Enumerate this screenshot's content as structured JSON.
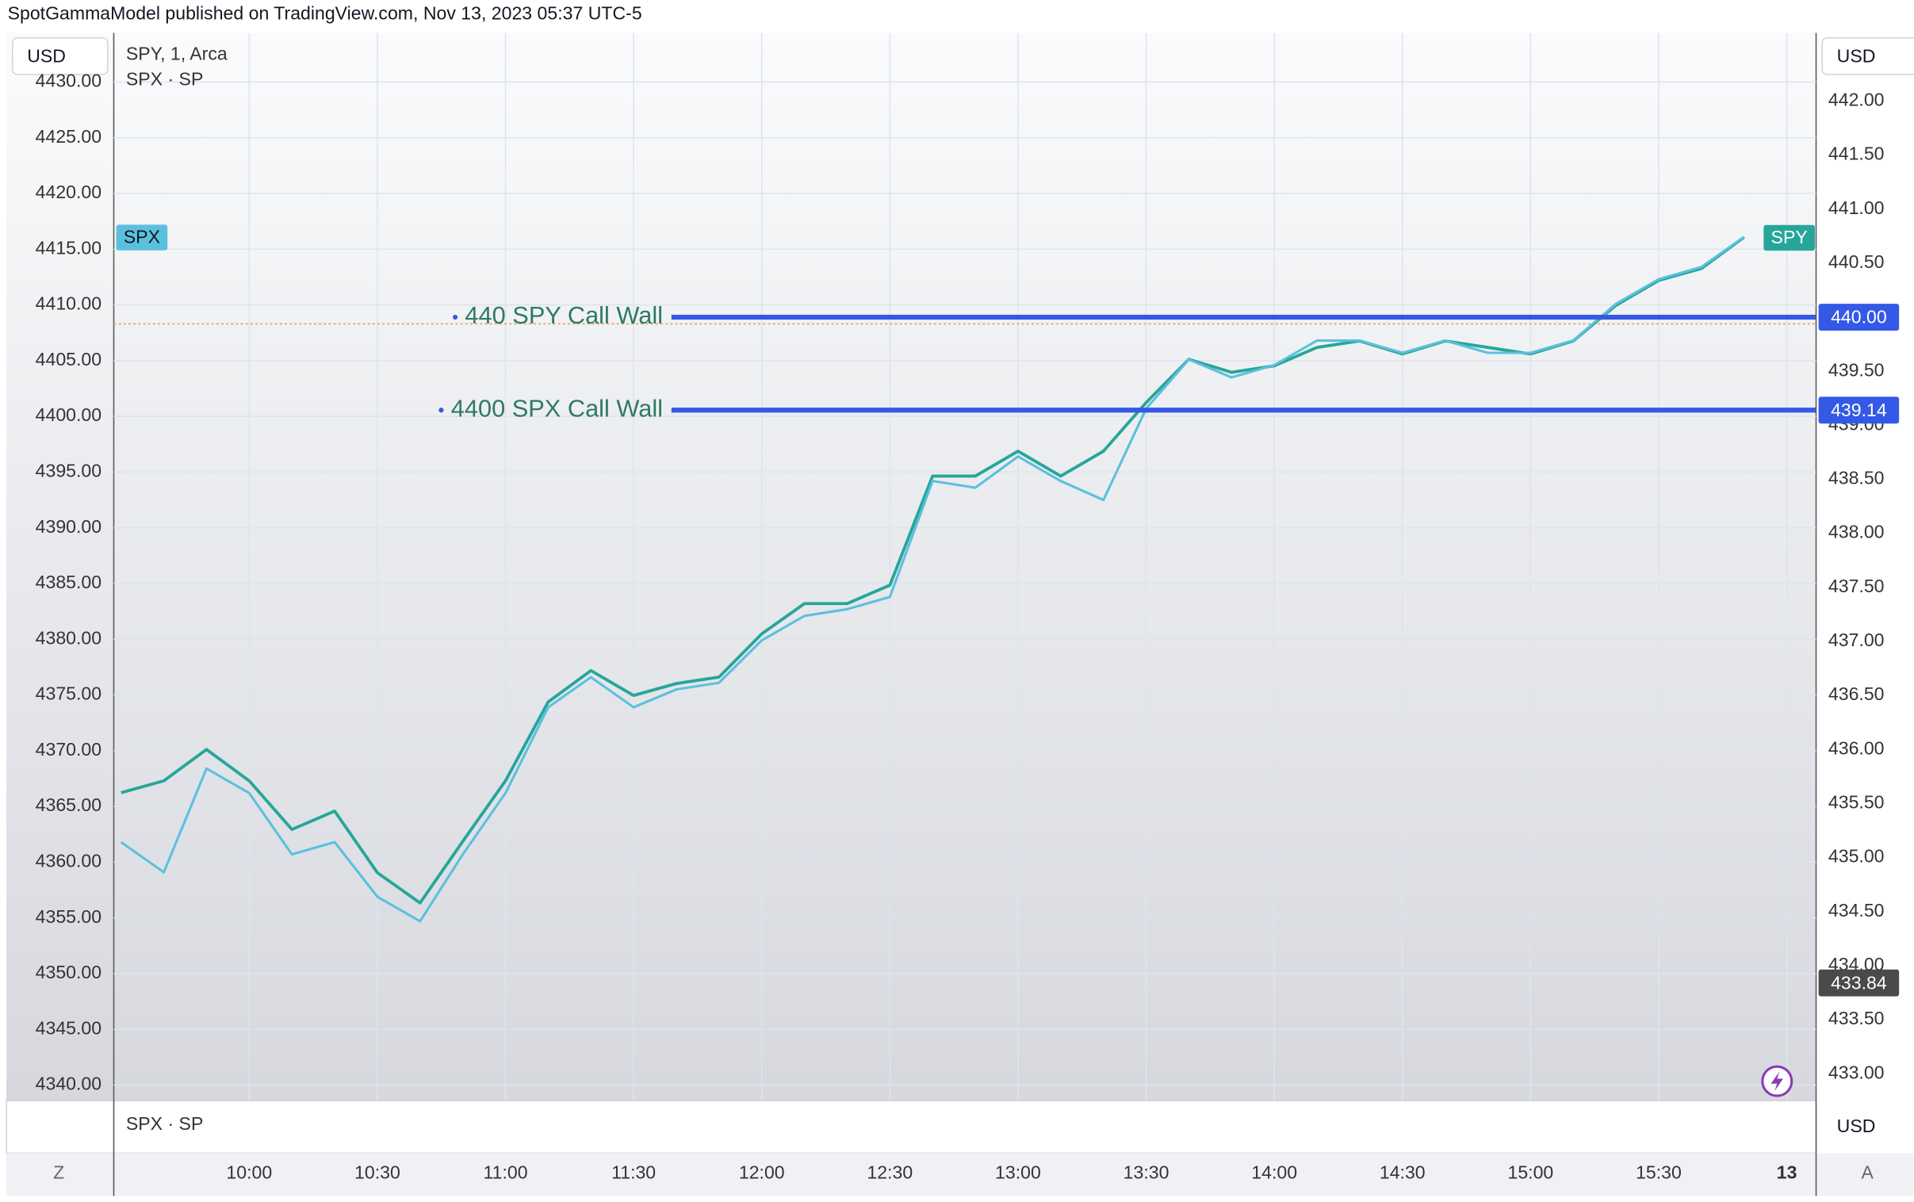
{
  "header": "SpotGammaModel published on TradingView.com, Nov 13, 2023 05:37 UTC-5",
  "ui": {
    "currency_left": "USD",
    "currency_right": "USD",
    "currency_pane": "USD",
    "z_button": "Z",
    "a_button": "A"
  },
  "chart_data": {
    "type": "line",
    "x": [
      null,
      null,
      null,
      "10:00",
      null,
      null,
      "10:30",
      null,
      null,
      "11:00",
      null,
      null,
      "11:30",
      null,
      null,
      "12:00",
      null,
      null,
      "12:30",
      null,
      null,
      "13:00",
      null,
      null,
      "13:30",
      null,
      null,
      "14:00",
      null,
      null,
      "14:30",
      null,
      null,
      "15:00",
      null,
      null,
      "15:30",
      null,
      null,
      "13"
    ],
    "series": [
      {
        "name": "SPY, 1, Arca",
        "tag": "SPY",
        "color": "#26a69a",
        "axis": "y2",
        "values": [
          435.6,
          435.71,
          436.0,
          435.71,
          435.26,
          435.43,
          434.86,
          434.58,
          435.15,
          435.71,
          436.44,
          436.73,
          436.5,
          436.61,
          436.67,
          437.07,
          437.35,
          437.35,
          437.52,
          438.53,
          438.53,
          438.76,
          438.53,
          438.76,
          439.21,
          439.61,
          439.49,
          439.55,
          439.72,
          439.78,
          439.66,
          439.78,
          439.72,
          439.66,
          439.78,
          440.11,
          440.34,
          440.45,
          440.74,
          null
        ]
      },
      {
        "name": "SPX · SP",
        "tag": "SPX",
        "color": "#5bc0de",
        "values": [
          4361.8,
          4359.1,
          4368.4,
          4366.2,
          4360.7,
          4361.8,
          4356.9,
          4354.7,
          4360.7,
          4366.2,
          4373.9,
          4376.6,
          4373.9,
          4375.5,
          4376.1,
          4379.9,
          4382.1,
          4382.7,
          4383.8,
          4394.2,
          4393.6,
          4396.4,
          4394.2,
          4392.5,
          4400.7,
          4405.1,
          4403.5,
          4404.6,
          4406.8,
          4406.8,
          4405.7,
          4406.8,
          4405.7,
          4405.7,
          4406.8,
          4410.1,
          4412.3,
          4413.4,
          4416.1,
          null
        ]
      }
    ],
    "ylim": [
      4338.6,
      4434.4
    ],
    "yticks": [
      {
        "value": 4340,
        "label": "4340.00"
      },
      {
        "value": 4345,
        "label": "4345.00"
      },
      {
        "value": 4350,
        "label": "4350.00"
      },
      {
        "value": 4355,
        "label": "4355.00"
      },
      {
        "value": 4360,
        "label": "4360.00"
      },
      {
        "value": 4365,
        "label": "4365.00"
      },
      {
        "value": 4370,
        "label": "4370.00"
      },
      {
        "value": 4375,
        "label": "4375.00"
      },
      {
        "value": 4380,
        "label": "4380.00"
      },
      {
        "value": 4385,
        "label": "4385.00"
      },
      {
        "value": 4390,
        "label": "4390.00"
      },
      {
        "value": 4395,
        "label": "4395.00"
      },
      {
        "value": 4400,
        "label": "4400.00"
      },
      {
        "value": 4405,
        "label": "4405.00"
      },
      {
        "value": 4410,
        "label": "4410.00"
      },
      {
        "value": 4415,
        "label": "4415.00"
      },
      {
        "value": 4420,
        "label": "4420.00"
      },
      {
        "value": 4425,
        "label": "4425.00"
      },
      {
        "value": 4430,
        "label": "4430.00"
      }
    ],
    "y2lim": [
      432.75,
      442.63
    ],
    "y2ticks": [
      {
        "value": 433,
        "label": "433.00"
      },
      {
        "value": 433.5,
        "label": "433.50"
      },
      {
        "value": 434,
        "label": "434.00"
      },
      {
        "value": 434.5,
        "label": "434.50"
      },
      {
        "value": 435,
        "label": "435.00"
      },
      {
        "value": 435.5,
        "label": "435.50"
      },
      {
        "value": 436,
        "label": "436.00"
      },
      {
        "value": 436.5,
        "label": "436.50"
      },
      {
        "value": 437,
        "label": "437.00"
      },
      {
        "value": 437.5,
        "label": "437.50"
      },
      {
        "value": 438,
        "label": "438.00"
      },
      {
        "value": 438.5,
        "label": "438.50"
      },
      {
        "value": 439,
        "label": "439.00"
      },
      {
        "value": 439.5,
        "label": "439.50"
      },
      {
        "value": 440,
        "label": "440.00"
      },
      {
        "value": 440.5,
        "label": "440.50"
      },
      {
        "value": 441,
        "label": "441.00"
      },
      {
        "value": 441.5,
        "label": "441.50"
      },
      {
        "value": 442,
        "label": "442.00"
      }
    ],
    "grid": true,
    "levels": [
      {
        "text": "440 SPY Call Wall",
        "value": 440,
        "label": "440.00",
        "color": "#3459e6"
      },
      {
        "text": "4400 SPX Call Wall",
        "value": 439.14,
        "label": "439.14",
        "color": "#3459e6"
      }
    ],
    "reference_line": {
      "value": 4408.3,
      "color": "#e8a060"
    },
    "price_marker": {
      "value": 433.84,
      "label": "433.84",
      "color": "#4a4a4a"
    }
  }
}
